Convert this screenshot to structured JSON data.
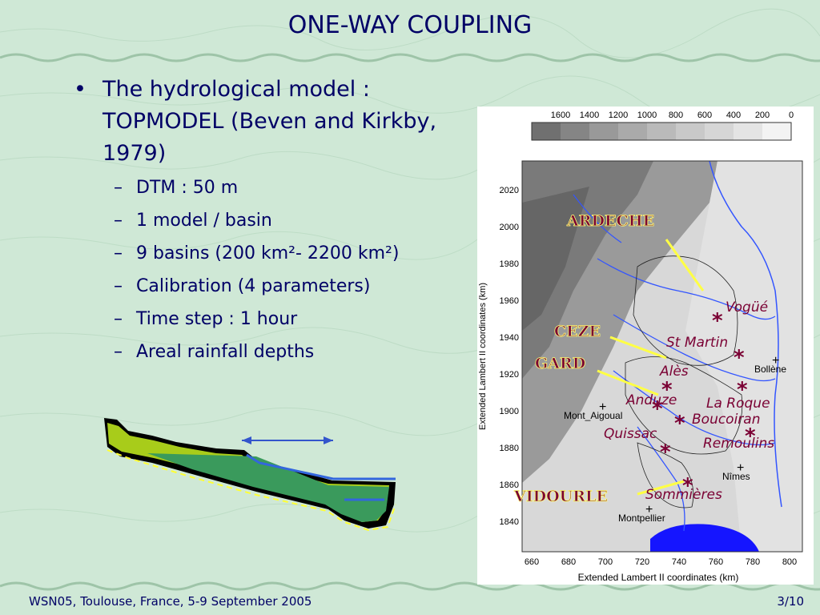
{
  "title": "ONE-WAY COUPLING",
  "bullet": "The hydrological model : TOPMODEL (Beven and Kirkby, 1979)",
  "sub_bullets": [
    "DTM : 50 m",
    "1 model / basin",
    "9 basins (200 km²- 2200 km²)",
    "Calibration (4 parameters)",
    "Time step : 1 hour",
    "Areal rainfall depths"
  ],
  "map": {
    "elevation_legend": [
      "1600",
      "1400",
      "1200",
      "1000",
      "800",
      "600",
      "400",
      "200",
      "0"
    ],
    "y_axis_label": "Extended Lambert II coordinates (km)",
    "x_axis_label": "Extended Lambert II coordinates (km)",
    "y_ticks": [
      "2020",
      "2000",
      "1980",
      "1960",
      "1940",
      "1920",
      "1900",
      "1880",
      "1860",
      "1840"
    ],
    "x_ticks": [
      "660",
      "680",
      "700",
      "720",
      "740",
      "760",
      "780",
      "800"
    ],
    "rivers": [
      "ARDECHE",
      "CEZE",
      "GARD",
      "VIDOURLE"
    ],
    "stations": [
      "Vogüé",
      "St Martin",
      "Alès",
      "Anduze",
      "La Roque",
      "Boucoiran",
      "Quissac",
      "Remoulins",
      "Sommières"
    ],
    "cities": [
      "Bollène",
      "Mont_Aigoual",
      "Nîmes",
      "Montpellier"
    ]
  },
  "footer": {
    "left": "WSN05, Toulouse, France, 5-9 September 2005",
    "right": "3/10"
  }
}
